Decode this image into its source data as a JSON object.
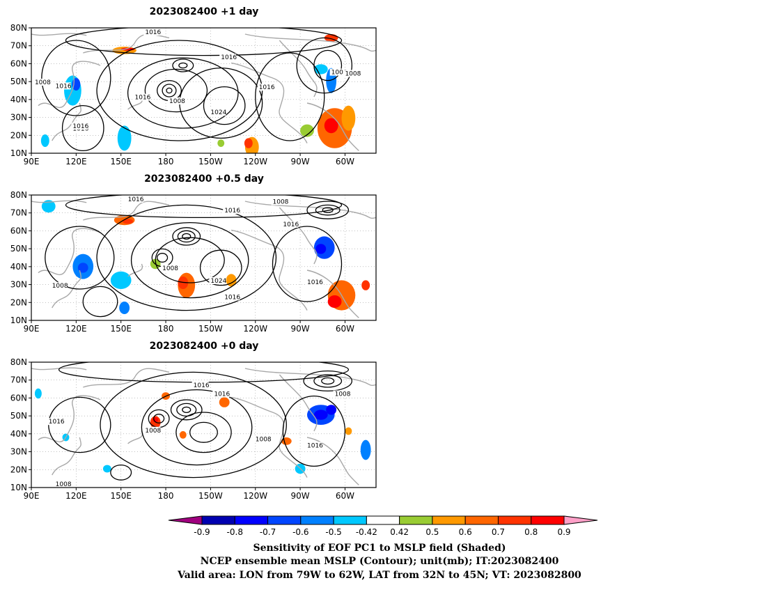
{
  "figure": {
    "panels": [
      {
        "title": "2023082400  +1 day",
        "y_ticks": [
          "80N",
          "70N",
          "60N",
          "50N",
          "40N",
          "30N",
          "20N",
          "10N"
        ],
        "x_ticks": [
          "90E",
          "120E",
          "150E",
          "180",
          "150W",
          "120W",
          "90W",
          "60W"
        ],
        "contour_labels": [
          "1016",
          "1016",
          "1016",
          "1016",
          "1008",
          "1016",
          "1008",
          "1024",
          "1016",
          "1008",
          "1008",
          "1016"
        ]
      },
      {
        "title": "2023082400  +0.5 day",
        "y_ticks": [
          "80N",
          "70N",
          "60N",
          "50N",
          "40N",
          "30N",
          "20N",
          "10N"
        ],
        "x_ticks": [
          "90E",
          "120E",
          "150E",
          "180",
          "150W",
          "120W",
          "90W",
          "60W"
        ],
        "contour_labels": [
          "1016",
          "1016",
          "1008",
          "1016",
          "1008",
          "1008",
          "1024",
          "1016",
          "1016"
        ]
      },
      {
        "title": "2023082400  +0 day",
        "y_ticks": [
          "80N",
          "70N",
          "60N",
          "50N",
          "40N",
          "30N",
          "20N",
          "10N"
        ],
        "x_ticks": [
          "90E",
          "120E",
          "150E",
          "180",
          "150W",
          "120W",
          "90W",
          "60W"
        ],
        "contour_labels": [
          "1016",
          "1016",
          "1016",
          "1008",
          "1008",
          "1008",
          "1016",
          "1008"
        ]
      }
    ],
    "colorbar": {
      "labels": [
        "-0.9",
        "-0.8",
        "-0.7",
        "-0.6",
        "-0.5",
        "-0.42",
        "0.42",
        "0.5",
        "0.6",
        "0.7",
        "0.8",
        "0.9"
      ],
      "colors": [
        "#a0007f",
        "#0000b0",
        "#0000ff",
        "#0045ff",
        "#0080ff",
        "#00c8ff",
        "#ffffff",
        "#99cc33",
        "#ff9900",
        "#ff6600",
        "#ff3300",
        "#ff0000",
        "#ffa0c8"
      ]
    },
    "caption": [
      "Sensitivity of EOF PC1 to MSLP field (Shaded)",
      "NCEP ensemble mean MSLP (Contour); unit(mb); IT:2023082400",
      "Valid area: LON from 79W to 62W, LAT from 32N to 45N; VT: 2023082800"
    ]
  }
}
